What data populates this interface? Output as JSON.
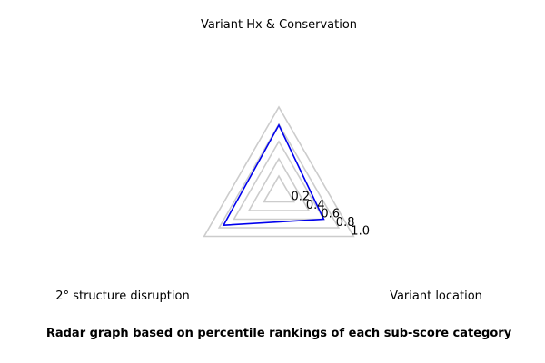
{
  "chart_data": {
    "type": "radar",
    "title": "Radar graph based on percentile rankings of each sub-score category",
    "axes": [
      "Variant Hx & Conservation",
      "Variant location",
      "2° structure disruption"
    ],
    "rings": [
      0.2,
      0.4,
      0.6,
      0.8,
      1.0
    ],
    "tick_labels": [
      "0.2",
      "0.4",
      "0.6",
      "0.8",
      "1.0"
    ],
    "rlim": [
      0,
      1.0
    ],
    "grid": true,
    "series": [
      {
        "values": [
          0.79,
          0.6,
          0.74
        ]
      }
    ],
    "colors": {
      "series": "#0000ee",
      "grid": "#cccccc"
    }
  }
}
